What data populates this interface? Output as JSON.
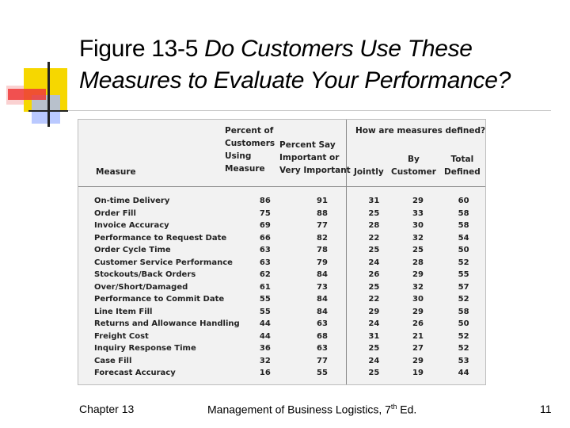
{
  "title": {
    "prefix": "Figure 13-5 ",
    "italic_line1": "Do Customers Use These",
    "italic_line2": "Measures to Evaluate Your Performance?"
  },
  "table": {
    "header": {
      "measure": "Measure",
      "percent_using": "Percent of\nCustomers\nUsing\nMeasure",
      "percent_important": "Percent Say\nImportant or\nVery Important",
      "group": "How are measures defined?",
      "jointly": "Jointly",
      "by_customer": "By\nCustomer",
      "total_defined": "Total\nDefined"
    },
    "rows": [
      {
        "measure": "On-time Delivery",
        "using": "86",
        "important": "91",
        "jointly": "31",
        "by_customer": "29",
        "total": "60"
      },
      {
        "measure": "Order Fill",
        "using": "75",
        "important": "88",
        "jointly": "25",
        "by_customer": "33",
        "total": "58"
      },
      {
        "measure": "Invoice Accuracy",
        "using": "69",
        "important": "77",
        "jointly": "28",
        "by_customer": "30",
        "total": "58"
      },
      {
        "measure": "Performance to Request Date",
        "using": "66",
        "important": "82",
        "jointly": "22",
        "by_customer": "32",
        "total": "54"
      },
      {
        "measure": "Order Cycle Time",
        "using": "63",
        "important": "78",
        "jointly": "25",
        "by_customer": "25",
        "total": "50"
      },
      {
        "measure": "Customer Service Performance",
        "using": "63",
        "important": "79",
        "jointly": "24",
        "by_customer": "28",
        "total": "52"
      },
      {
        "measure": "Stockouts/Back Orders",
        "using": "62",
        "important": "84",
        "jointly": "26",
        "by_customer": "29",
        "total": "55"
      },
      {
        "measure": "Over/Short/Damaged",
        "using": "61",
        "important": "73",
        "jointly": "25",
        "by_customer": "32",
        "total": "57"
      },
      {
        "measure": "Performance to Commit Date",
        "using": "55",
        "important": "84",
        "jointly": "22",
        "by_customer": "30",
        "total": "52"
      },
      {
        "measure": "Line Item Fill",
        "using": "55",
        "important": "84",
        "jointly": "29",
        "by_customer": "29",
        "total": "58"
      },
      {
        "measure": "Returns and Allowance Handling",
        "using": "44",
        "important": "63",
        "jointly": "24",
        "by_customer": "26",
        "total": "50"
      },
      {
        "measure": "Freight Cost",
        "using": "44",
        "important": "68",
        "jointly": "31",
        "by_customer": "21",
        "total": "52"
      },
      {
        "measure": "Inquiry Response Time",
        "using": "36",
        "important": "63",
        "jointly": "25",
        "by_customer": "27",
        "total": "52"
      },
      {
        "measure": "Case Fill",
        "using": "32",
        "important": "77",
        "jointly": "24",
        "by_customer": "29",
        "total": "53"
      },
      {
        "measure": "Forecast Accuracy",
        "using": "16",
        "important": "55",
        "jointly": "25",
        "by_customer": "19",
        "total": "44"
      }
    ]
  },
  "footer": {
    "chapter": "Chapter 13",
    "book": "Management of Business Logistics, 7",
    "book_sup": "th",
    "book_suffix": " Ed.",
    "page": "11"
  },
  "colors": {
    "accent_yellow": "#f6d700",
    "accent_red": "#ee3a3a",
    "accent_blue": "#a9bcff"
  }
}
